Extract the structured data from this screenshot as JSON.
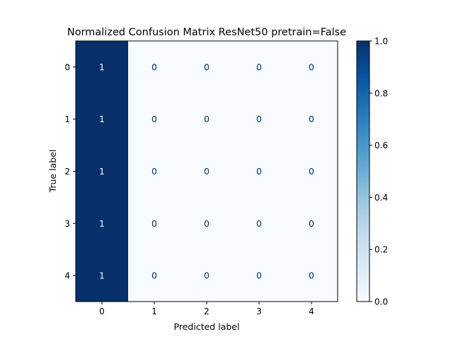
{
  "chart_data": {
    "type": "heatmap",
    "title": "Normalized Confusion Matrix ResNet50 pretrain=False",
    "xlabel": "Predicted label",
    "ylabel": "True label",
    "x_categories": [
      "0",
      "1",
      "2",
      "3",
      "4"
    ],
    "y_categories": [
      "0",
      "1",
      "2",
      "3",
      "4"
    ],
    "matrix": [
      [
        1,
        0,
        0,
        0,
        0
      ],
      [
        1,
        0,
        0,
        0,
        0
      ],
      [
        1,
        0,
        0,
        0,
        0
      ],
      [
        1,
        0,
        0,
        0,
        0
      ],
      [
        1,
        0,
        0,
        0,
        0
      ]
    ],
    "cell_labels": [
      [
        "1",
        "0",
        "0",
        "0",
        "0"
      ],
      [
        "1",
        "0",
        "0",
        "0",
        "0"
      ],
      [
        "1",
        "0",
        "0",
        "0",
        "0"
      ],
      [
        "1",
        "0",
        "0",
        "0",
        "0"
      ],
      [
        "1",
        "0",
        "0",
        "0",
        "0"
      ]
    ],
    "colormap": "Blues",
    "colorbar": {
      "range": [
        0.0,
        1.0
      ],
      "ticks": [
        "0.0",
        "0.2",
        "0.4",
        "0.6",
        "0.8",
        "1.0"
      ]
    },
    "colors": {
      "low": "#f7fbff",
      "high": "#08306b",
      "text_on_dark": "#f7fbff",
      "text_on_light": "#08306b"
    }
  }
}
